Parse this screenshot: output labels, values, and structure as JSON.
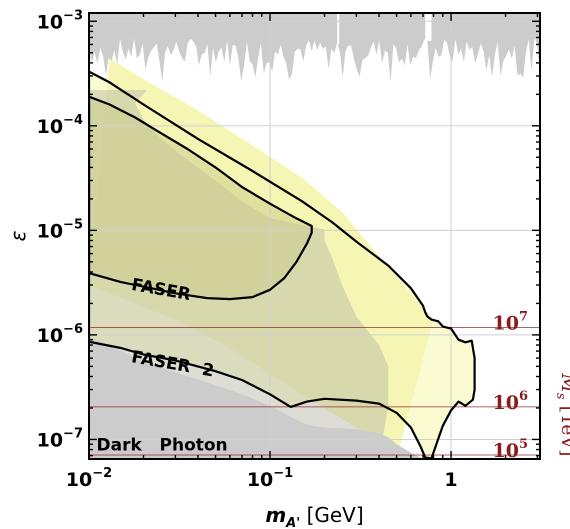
{
  "chart_data": {
    "type": "area",
    "xlabel": {
      "base": "m",
      "sub": "A'",
      "unit": " [GeV]"
    },
    "ylabel": "ε",
    "x_scale": "log",
    "y_scale": "log",
    "xlim": [
      0.01,
      3.1
    ],
    "ylim": [
      6.5e-08,
      0.0012
    ],
    "grid": true,
    "x_ticks": [
      {
        "value": 0.01,
        "base": "10",
        "exp": "−2"
      },
      {
        "value": 0.1,
        "base": "10",
        "exp": "−1"
      },
      {
        "value": 1,
        "base": "1",
        "exp": ""
      }
    ],
    "y_ticks": [
      {
        "value": 1e-07,
        "base": "10",
        "exp": "−7"
      },
      {
        "value": 1e-06,
        "base": "10",
        "exp": "−6"
      },
      {
        "value": 1e-05,
        "base": "10",
        "exp": "−5"
      },
      {
        "value": 0.0001,
        "base": "10",
        "exp": "−4"
      },
      {
        "value": 0.001,
        "base": "10",
        "exp": "−3"
      }
    ],
    "colors": {
      "excluded": "#cccccc",
      "yellow_light": "#fbfbd2",
      "yellow_mid": "#f6f6b4",
      "olive_overlap": "#d2d2a6",
      "dark_olive": "#cccc8c",
      "curve": "#000000",
      "ms_axis": "#8b1a1a"
    },
    "series": [
      {
        "name": "FASER",
        "kind": "contour",
        "points": [
          [
            0.01,
            3.9e-06
          ],
          [
            0.015,
            3.2e-06
          ],
          [
            0.02,
            2.9e-06
          ],
          [
            0.03,
            2.5e-06
          ],
          [
            0.045,
            2.25e-06
          ],
          [
            0.06,
            2.2e-06
          ],
          [
            0.08,
            2.3e-06
          ],
          [
            0.1,
            2.7e-06
          ],
          [
            0.12,
            3.5e-06
          ],
          [
            0.14,
            5e-06
          ],
          [
            0.16,
            7.5e-06
          ],
          [
            0.17,
            9.5e-06
          ],
          [
            0.17,
            1.1e-05
          ],
          [
            0.14,
            1.3e-05
          ],
          [
            0.1,
            1.8e-05
          ],
          [
            0.07,
            2.6e-05
          ],
          [
            0.05,
            4e-05
          ],
          [
            0.035,
            6e-05
          ],
          [
            0.025,
            8.5e-05
          ],
          [
            0.018,
            0.00012
          ],
          [
            0.013,
            0.00016
          ],
          [
            0.01,
            0.00019
          ]
        ]
      },
      {
        "name": "FASER 2",
        "kind": "contour",
        "points": [
          [
            0.01,
            8.6e-07
          ],
          [
            0.015,
            7.5e-07
          ],
          [
            0.02,
            6.5e-07
          ],
          [
            0.03,
            5.7e-07
          ],
          [
            0.05,
            4.5e-07
          ],
          [
            0.07,
            3.7e-07
          ],
          [
            0.1,
            2.7e-07
          ],
          [
            0.13,
            2.05e-07
          ],
          [
            0.16,
            2.3e-07
          ],
          [
            0.2,
            2.45e-07
          ],
          [
            0.3,
            2.35e-07
          ],
          [
            0.4,
            2.2e-07
          ],
          [
            0.5,
            1.8e-07
          ],
          [
            0.6,
            1.3e-07
          ],
          [
            0.68,
            8.5e-08
          ],
          [
            0.72,
            6.7e-08
          ],
          [
            0.78,
            6.6e-08
          ],
          [
            0.83,
            9e-08
          ],
          [
            0.9,
            1.35e-07
          ],
          [
            1.0,
            1.9e-07
          ],
          [
            1.1,
            2.3e-07
          ],
          [
            1.2,
            2.1e-07
          ],
          [
            1.32,
            2.4e-07
          ],
          [
            1.35,
            3e-07
          ],
          [
            1.35,
            6e-07
          ],
          [
            1.3,
            8.8e-07
          ],
          [
            1.2,
            8.5e-07
          ],
          [
            1.1,
            9e-07
          ],
          [
            1.0,
            1.15e-06
          ],
          [
            0.9,
            1.2e-06
          ],
          [
            0.85,
            1.35e-06
          ],
          [
            0.78,
            1.4e-06
          ],
          [
            0.74,
            1.5e-06
          ],
          [
            0.72,
            1.65e-06
          ],
          [
            0.7,
            1.9e-06
          ],
          [
            0.6,
            2.8e-06
          ],
          [
            0.45,
            4.6e-06
          ],
          [
            0.3,
            7.8e-06
          ],
          [
            0.22,
            1.2e-05
          ],
          [
            0.15,
            1.9e-05
          ],
          [
            0.08,
            3.7e-05
          ],
          [
            0.04,
            7.5e-05
          ],
          [
            0.02,
            0.00016
          ],
          [
            0.013,
            0.00026
          ],
          [
            0.01,
            0.00033
          ]
        ]
      }
    ],
    "regions": {
      "dark_photon_excluded": [
        [
          0.01,
          6.5e-08
        ],
        [
          0.01,
          9.5e-07
        ],
        [
          0.015,
          7e-07
        ],
        [
          0.02,
          5.5e-07
        ],
        [
          0.03,
          4.4e-07
        ],
        [
          0.05,
          3.3e-07
        ],
        [
          0.07,
          2.7e-07
        ],
        [
          0.1,
          2.1e-07
        ],
        [
          0.13,
          1.65e-07
        ],
        [
          0.15,
          1.45e-07
        ],
        [
          0.17,
          1.35e-07
        ],
        [
          0.2,
          1.3e-07
        ],
        [
          0.3,
          1.25e-07
        ],
        [
          0.4,
          1.15e-07
        ],
        [
          0.45,
          1.05e-07
        ],
        [
          0.5,
          9e-08
        ],
        [
          0.6,
          7.5e-08
        ],
        [
          0.7,
          6.5e-08
        ]
      ],
      "light_band_lower": [
        [
          0.01,
          3e-06
        ],
        [
          0.03,
          1.4e-06
        ],
        [
          0.06,
          7.5e-07
        ],
        [
          0.1,
          4.2e-07
        ],
        [
          0.2,
          2e-07
        ],
        [
          0.35,
          1.1e-07
        ],
        [
          0.5,
          6.5e-08
        ]
      ],
      "light_band_upper": [
        [
          0.013,
          0.00044
        ],
        [
          0.02,
          0.00028
        ],
        [
          0.04,
          0.00014
        ],
        [
          0.08,
          6.5e-05
        ],
        [
          0.15,
          3.2e-05
        ],
        [
          0.25,
          1.5e-05
        ],
        [
          0.35,
          7.5e-06
        ],
        [
          0.5,
          3.6e-06
        ],
        [
          0.7,
          1.8e-06
        ],
        [
          0.8,
          1.4e-06
        ]
      ],
      "grey_upper_right": [
        [
          0.2,
          1.02e-05
        ],
        [
          0.1,
          1.3e-05
        ],
        [
          0.07,
          1.9e-05
        ],
        [
          0.05,
          3e-05
        ],
        [
          0.035,
          4.7e-05
        ],
        [
          0.025,
          7.5e-05
        ],
        [
          0.02,
          0.000115
        ],
        [
          0.018,
          0.000165
        ],
        [
          0.021,
          0.00022
        ],
        [
          0.01,
          0.00022
        ],
        [
          0.01,
          6.5e-08
        ],
        [
          0.4,
          6.5e-08
        ],
        [
          0.45,
          2.1e-07
        ],
        [
          0.45,
          5e-07
        ],
        [
          0.4,
          8e-07
        ],
        [
          0.3,
          1.5e-06
        ],
        [
          0.25,
          3e-06
        ],
        [
          0.22,
          5.5e-06
        ],
        [
          0.2,
          8e-06
        ]
      ]
    },
    "ms_axis": {
      "title": {
        "base": "M",
        "sub": "s",
        "unit": " [TeV]"
      },
      "ticks": [
        {
          "label_base": "10",
          "label_exp": "7",
          "epsilon": 1.18e-06
        },
        {
          "label_base": "10",
          "label_exp": "6",
          "epsilon": 2.05e-07
        },
        {
          "label_base": "10",
          "label_exp": "5",
          "epsilon": 7.1e-08
        }
      ]
    },
    "annotations": [
      {
        "text": "FASER",
        "x": 0.017,
        "y": 2.7e-06,
        "angle": 10
      },
      {
        "text": "FASER  2",
        "x": 0.017,
        "y": 5.5e-07,
        "angle": 10
      },
      {
        "text": "Dark   Photon",
        "x": 0.011,
        "y": 7.8e-08,
        "angle": 0
      }
    ]
  }
}
